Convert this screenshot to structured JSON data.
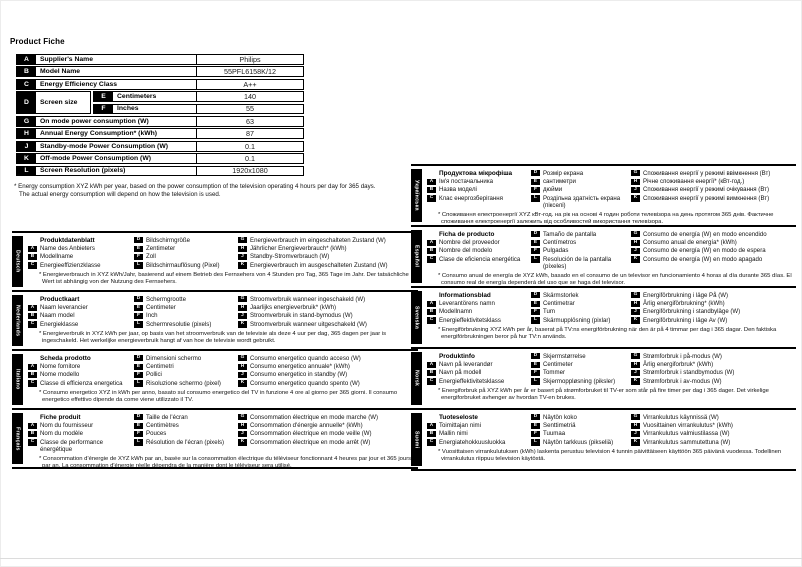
{
  "page": {
    "title": "Product Fiche"
  },
  "table": {
    "rows": [
      {
        "letter": "A",
        "label": "Supplier's Name",
        "value": "Philips"
      },
      {
        "letter": "B",
        "label": "Model Name",
        "value": "55PFL6158K/12"
      },
      {
        "letter": "C",
        "label": "Energy Efficiency Class",
        "value": "A++"
      },
      {
        "letter": "D",
        "label": "Screen size",
        "sub": [
          {
            "letter": "E",
            "label": "Centimeters",
            "value": "140"
          },
          {
            "letter": "F",
            "label": "Inches",
            "value": "55"
          }
        ]
      },
      {
        "letter": "G",
        "label": "On mode power consumption (W)",
        "value": "63"
      },
      {
        "letter": "H",
        "label": "Annual Energy Consumption* (kWh)",
        "value": "87"
      },
      {
        "letter": "J",
        "label": "Standby-mode Power Consumption (W)",
        "value": "0.1"
      },
      {
        "letter": "K",
        "label": "Off-mode Power Consumption (W)",
        "value": "0.1"
      },
      {
        "letter": "L",
        "label": "Screen Resolution (pixels)",
        "value": "1920x1080"
      }
    ]
  },
  "footnote": {
    "line1": "* Energy consumption XYZ kWh per year, based on the power consumption of the television operating 4 hours per day for 365 days.",
    "line2": "The actual energy consumption will depend on how the television is used."
  },
  "sections": {
    "left": [
      {
        "language": "Deutsch",
        "header": "Produktdatenblatt",
        "col1": [
          {
            "letter": "A",
            "text": "Name des Anbieters"
          },
          {
            "letter": "B",
            "text": "Modellname"
          },
          {
            "letter": "C",
            "text": "Energieeffizienzklasse"
          }
        ],
        "col2": [
          {
            "letter": "D",
            "text": "Bildschirmgröße"
          },
          {
            "letter": "E",
            "text": "Zentimeter"
          },
          {
            "letter": "F",
            "text": "Zoll"
          },
          {
            "letter": "L",
            "text": "Bildschirmauflösung (Pixel)"
          }
        ],
        "col3": [
          {
            "letter": "G",
            "text": "Energieverbrauch im eingeschalteten Zustand (W)"
          },
          {
            "letter": "H",
            "text": "Jährlicher Energieverbrauch* (kWh)"
          },
          {
            "letter": "J",
            "text": "Standby-Stromverbrauch (W)"
          },
          {
            "letter": "K",
            "text": "Energieverbrauch im ausgeschalteten Zustand (W)"
          }
        ],
        "note": "* Energieverbrauch in XYZ kWh/Jahr, basierend auf einem Betrieb des Fernsehers von 4 Stunden pro Tag, 365 Tage im Jahr. Der tatsächliche Wert ist abhängig von der Nutzung des Fernsehers."
      },
      {
        "language": "Nederlands",
        "header": "Productkaart",
        "col1": [
          {
            "letter": "A",
            "text": "Naam leverancier"
          },
          {
            "letter": "B",
            "text": "Naam model"
          },
          {
            "letter": "C",
            "text": "Energieklasse"
          }
        ],
        "col2": [
          {
            "letter": "D",
            "text": "Schermgrootte"
          },
          {
            "letter": "E",
            "text": "Centimeter"
          },
          {
            "letter": "F",
            "text": "Inch"
          },
          {
            "letter": "L",
            "text": "Schermresolutie (pixels)"
          }
        ],
        "col3": [
          {
            "letter": "G",
            "text": "Stroomverbruik wanneer ingeschakeld (W)"
          },
          {
            "letter": "H",
            "text": "Jaarlijks energieverbruik* (kWh)"
          },
          {
            "letter": "J",
            "text": "Stroomverbruik in stand-bymodus (W)"
          },
          {
            "letter": "K",
            "text": "Stroomverbruik wanneer uitgeschakeld (W)"
          }
        ],
        "note": "* Energieverbruik in XYZ kWh per jaar, op basis van het stroomverbruik van de televisie als deze 4 uur per dag, 365 dagen per jaar is ingeschakeld. Het werkelijke energieverbruik hangt af van hoe de televisie wordt gebruikt."
      },
      {
        "language": "Italiano",
        "header": "Scheda prodotto",
        "col1": [
          {
            "letter": "A",
            "text": "Nome fornitore"
          },
          {
            "letter": "B",
            "text": "Nome modello"
          },
          {
            "letter": "C",
            "text": "Classe di efficienza energetica"
          }
        ],
        "col2": [
          {
            "letter": "D",
            "text": "Dimensioni schermo"
          },
          {
            "letter": "E",
            "text": "Centimetri"
          },
          {
            "letter": "F",
            "text": "Pollici"
          },
          {
            "letter": "L",
            "text": "Risoluzione schermo (pixel)"
          }
        ],
        "col3": [
          {
            "letter": "G",
            "text": "Consumo energetico quando acceso (W)"
          },
          {
            "letter": "H",
            "text": "Consumo energetico annuale* (kWh)"
          },
          {
            "letter": "J",
            "text": "Consumo energetico in standby (W)"
          },
          {
            "letter": "K",
            "text": "Consumo energetico quando spento (W)"
          }
        ],
        "note": "* Consumo energetico XYZ in kWh per anno, basato sul consumo energetico del TV in funzione 4 ore al giorno per 365 giorni. Il consumo energetico effettivo dipende da come viene utilizzato il TV."
      },
      {
        "language": "Français",
        "header": "Fiche produit",
        "col1": [
          {
            "letter": "A",
            "text": "Nom du fournisseur"
          },
          {
            "letter": "B",
            "text": "Nom du modèle"
          },
          {
            "letter": "C",
            "text": "Classe de performance énergétique"
          }
        ],
        "col2": [
          {
            "letter": "D",
            "text": "Taille de l'écran"
          },
          {
            "letter": "E",
            "text": "Centimètres"
          },
          {
            "letter": "F",
            "text": "Pouces"
          },
          {
            "letter": "L",
            "text": "Résolution de l'écran (pixels)"
          }
        ],
        "col3": [
          {
            "letter": "G",
            "text": "Consommation électrique en mode marche (W)"
          },
          {
            "letter": "H",
            "text": "Consommation d'énergie annuelle* (kWh)"
          },
          {
            "letter": "J",
            "text": "Consommation électrique en mode veille (W)"
          },
          {
            "letter": "K",
            "text": "Consommation électrique en mode arrêt (W)"
          }
        ],
        "note": "* Consommation d'énergie de XYZ kWh par an, basée sur la consommation électrique du téléviseur fonctionnant 4 heures par jour et 365 jours par an. La consommation d'énergie réelle dépendra de la manière dont le téléviseur sera utilisé."
      }
    ],
    "right": [
      {
        "language": "Українська",
        "header": "Продуктова мікрофіша",
        "col1": [
          {
            "letter": "A",
            "text": "Ім'я постачальника"
          },
          {
            "letter": "B",
            "text": "Назва моделі"
          },
          {
            "letter": "C",
            "text": "Клас енергозберігання"
          }
        ],
        "col2": [
          {
            "letter": "D",
            "text": "Розмір екрана"
          },
          {
            "letter": "E",
            "text": "сантиметри"
          },
          {
            "letter": "F",
            "text": "дюйми"
          },
          {
            "letter": "L",
            "text": "Роздільна здатність екрана (пікселі)"
          }
        ],
        "col3": [
          {
            "letter": "G",
            "text": "Споживання енергії у режимі ввімкнення (Вт)"
          },
          {
            "letter": "H",
            "text": "Річне споживання енергії* (кВт-год.)"
          },
          {
            "letter": "J",
            "text": "Споживання енергії у режимі очікування (Вт)"
          },
          {
            "letter": "K",
            "text": "Споживання енергії у режимі вимкнення (Вт)"
          }
        ],
        "note": "* Споживання електроенергії XYZ кВт-год. на рік на основі 4 годин роботи телевізора на день протягом 365 днів. Фактичне споживання електроенергії залежить від особливостей використання телевізора."
      },
      {
        "language": "Español",
        "header": "Ficha de producto",
        "col1": [
          {
            "letter": "A",
            "text": "Nombre del proveedor"
          },
          {
            "letter": "B",
            "text": "Nombre del modelo"
          },
          {
            "letter": "C",
            "text": "Clase de eficiencia energética"
          }
        ],
        "col2": [
          {
            "letter": "D",
            "text": "Tamaño de pantalla"
          },
          {
            "letter": "E",
            "text": "Centímetros"
          },
          {
            "letter": "F",
            "text": "Pulgadas"
          },
          {
            "letter": "L",
            "text": "Resolución de la pantalla (píxeles)"
          }
        ],
        "col3": [
          {
            "letter": "G",
            "text": "Consumo de energía (W) en modo encendido"
          },
          {
            "letter": "H",
            "text": "Consumo anual de energía* (kWh)"
          },
          {
            "letter": "J",
            "text": "Consumo de energía (W) en modo de espera"
          },
          {
            "letter": "K",
            "text": "Consumo de energía (W) en modo apagado"
          }
        ],
        "note": "* Consumo anual de energía de XYZ kWh, basado en el consumo de un televisor en funcionamiento 4 horas al día durante 365 días. El consumo real de energía dependerá del uso que se haga del televisor."
      },
      {
        "language": "Svenska",
        "header": "Informationsblad",
        "col1": [
          {
            "letter": "A",
            "text": "Leverantörens namn"
          },
          {
            "letter": "B",
            "text": "Modellnamn"
          },
          {
            "letter": "C",
            "text": "Energieffektivitetsklass"
          }
        ],
        "col2": [
          {
            "letter": "D",
            "text": "Skärmstorlek"
          },
          {
            "letter": "E",
            "text": "Centimetrar"
          },
          {
            "letter": "F",
            "text": "Tum"
          },
          {
            "letter": "L",
            "text": "Skärmupplösning (pixlar)"
          }
        ],
        "col3": [
          {
            "letter": "G",
            "text": "Energiförbrukning i läge På (W)"
          },
          {
            "letter": "H",
            "text": "Årlig energiförbrukning* (kWh)"
          },
          {
            "letter": "J",
            "text": "Energiförbrukning i standbyläge (W)"
          },
          {
            "letter": "K",
            "text": "Energiförbrukning i läge Av (W)"
          }
        ],
        "note": "* Energiförbrukning XYZ kWh per år, baserat på TV:ns energiförbrukning när den är på 4 timmar per dag i 365 dagar. Den faktiska energiförbrukningen beror på hur TV:n används."
      },
      {
        "language": "Norsk",
        "header": "Produktinfo",
        "col1": [
          {
            "letter": "A",
            "text": "Navn på leverandør"
          },
          {
            "letter": "B",
            "text": "Navn på modell"
          },
          {
            "letter": "C",
            "text": "Energieffektivitetsklasse"
          }
        ],
        "col2": [
          {
            "letter": "D",
            "text": "Skjermstørrelse"
          },
          {
            "letter": "E",
            "text": "Centimeter"
          },
          {
            "letter": "F",
            "text": "Tommer"
          },
          {
            "letter": "L",
            "text": "Skjermoppløsning (piksler)"
          }
        ],
        "col3": [
          {
            "letter": "G",
            "text": "Strømforbruk i på-modus (W)"
          },
          {
            "letter": "H",
            "text": "Årlig energiforbruk* (kWh)"
          },
          {
            "letter": "J",
            "text": "Strømforbruk i standbymodus (W)"
          },
          {
            "letter": "K",
            "text": "Strømforbruk i av-modus (W)"
          }
        ],
        "note": "* Energiforbruk på XYZ kWh per år er basert på strømforbruket til TV-er som står på fire timer per dag i 365 dager. Det virkelige energiforbruket avhenger av hvordan TV-en brukes."
      },
      {
        "language": "Suomi",
        "header": "Tuoteseloste",
        "col1": [
          {
            "letter": "A",
            "text": "Toimittajan nimi"
          },
          {
            "letter": "B",
            "text": "Mallin nimi"
          },
          {
            "letter": "C",
            "text": "Energiatehokkuusluokka"
          }
        ],
        "col2": [
          {
            "letter": "D",
            "text": "Näytön koko"
          },
          {
            "letter": "E",
            "text": "Senttimetriä"
          },
          {
            "letter": "F",
            "text": "Tuumaa"
          },
          {
            "letter": "L",
            "text": "Näytön tarkkuus (pikseliä)"
          }
        ],
        "col3": [
          {
            "letter": "G",
            "text": "Virrankulutus käynnissä (W)"
          },
          {
            "letter": "H",
            "text": "Vuosittainen virrankulutus* (kWh)"
          },
          {
            "letter": "J",
            "text": "Virrankulutus valmiustilassa (W)"
          },
          {
            "letter": "K",
            "text": "Virrankulutus sammutettuna (W)"
          }
        ],
        "note": "* Vuosittaisen virrankulutuksen (kWh) laskenta perustuu television 4 tunnin päivittäiseen käyttöön 365 päivänä vuodessa. Todellinen virrankulutus riippuu television käytöstä."
      }
    ]
  }
}
